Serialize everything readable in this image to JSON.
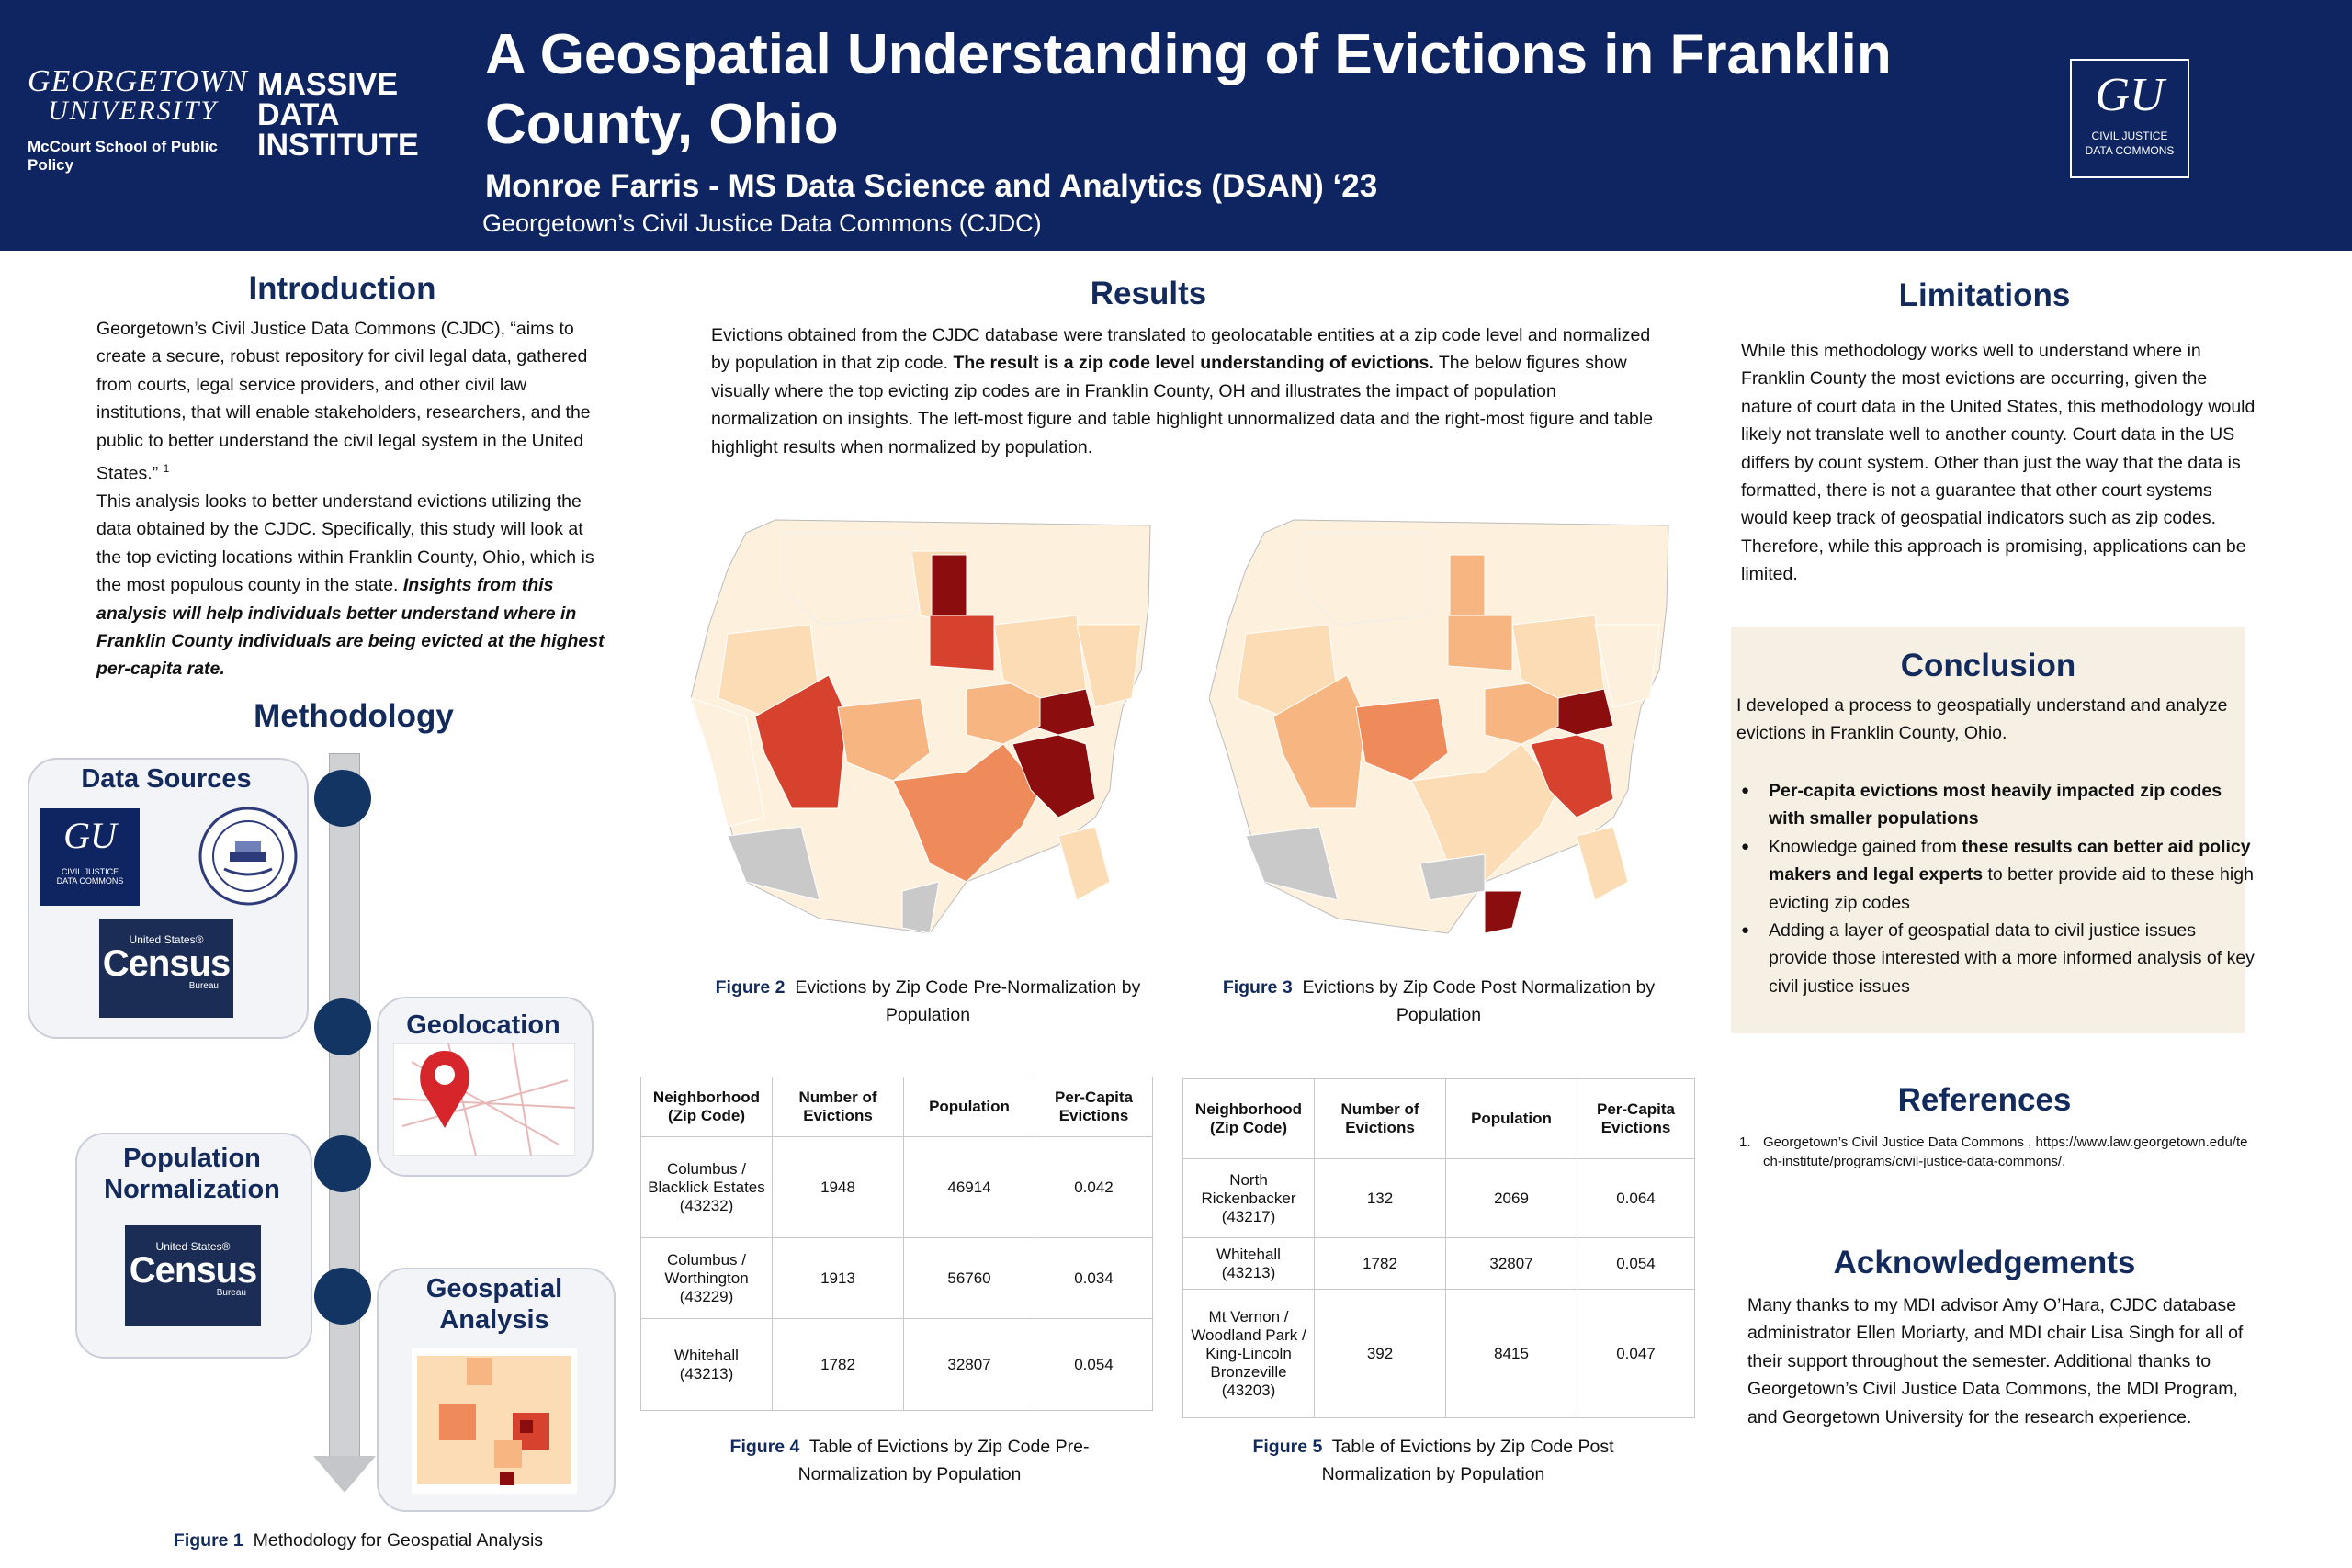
{
  "header": {
    "georgetown_line1": "GEORGETOWN",
    "georgetown_line2": "UNIVERSITY",
    "mccourt": "McCourt School of Public Policy",
    "mdi_line1": "MASSIVE",
    "mdi_line2": "DATA",
    "mdi_line3": "INSTITUTE",
    "title": "A Geospatial Understanding of Evictions in Franklin County, Ohio",
    "author": "Monroe Farris - MS Data Science and Analytics (DSAN) ‘23",
    "organization": "Georgetown’s Civil Justice Data Commons (CJDC)",
    "cjdc_logo_gu": "GU",
    "cjdc_logo_line1": "CIVIL JUSTICE",
    "cjdc_logo_line2": "DATA COMMONS"
  },
  "introduction": {
    "title": "Introduction",
    "para1": "Georgetown’s Civil Justice Data Commons (CJDC), “aims to create a secure, robust repository for civil legal data, gathered from courts, legal service providers, and other civil law institutions, that will enable stakeholders, researchers, and the public to better understand the civil legal system in the United States.”",
    "para1_footnote": "1",
    "para2": "This analysis looks to better  understand  evictions utilizing the data obtained by the CJDC. Specifically, this study will look at the top evicting locations within Franklin County, Ohio, which is the most populous county in the state.",
    "para2_emphasis": "Insights from this analysis will help individuals better understand where in Franklin County individuals are being evicted at the highest per-capita rate."
  },
  "methodology": {
    "title": "Methodology",
    "steps": [
      "Data Sources",
      "Geolocation",
      "Population Normalization",
      "Geospatial Analysis"
    ],
    "census_small": "United States®",
    "census_big": "Census",
    "census_bureau": "Bureau",
    "seal_text": "FRANKLIN COUNTY OHIO",
    "figure_label": "Figure 1",
    "figure_caption": "Methodology for Geospatial Analysis"
  },
  "results": {
    "title": "Results",
    "text_a": "Evictions obtained from the CJDC database were translated to geolocatable entities at a zip code level and normalized by population in that zip code.",
    "text_bold": "The result is a zip code level understanding of evictions.",
    "text_b": "The below figures show visually where the top evicting zip codes are in Franklin County, OH and illustrates the impact of population normalization on insights. The left-most figure and table highlight unnormalized data and the right-most figure and table highlight results when normalized by population.",
    "figure2_label": "Figure 2",
    "figure2_caption": "Evictions by Zip Code Pre-Normalization by Population",
    "figure3_label": "Figure 3",
    "figure3_caption": "Evictions by Zip Code Post Normalization by Population",
    "figure4_label": "Figure 4",
    "figure4_caption": "Table of Evictions by Zip Code Pre-Normalization by Population",
    "figure5_label": "Figure 5",
    "figure5_caption": "Table of Evictions by Zip Code Post Normalization by Population",
    "table_headers": [
      "Neighborhood (Zip Code)",
      "Number of Evictions",
      "Population",
      "Per-Capita Evictions"
    ],
    "table_pre": [
      [
        "Columbus / Blacklick Estates (43232)",
        "1948",
        "46914",
        "0.042"
      ],
      [
        "Columbus / Worthington (43229)",
        "1913",
        "56760",
        "0.034"
      ],
      [
        "Whitehall (43213)",
        "1782",
        "32807",
        "0.054"
      ]
    ],
    "table_post": [
      [
        "North Rickenbacker (43217)",
        "132",
        "2069",
        "0.064"
      ],
      [
        "Whitehall (43213)",
        "1782",
        "32807",
        "0.054"
      ],
      [
        "Mt Vernon / Woodland Park / King-Lincoln Bronzeville (43203)",
        "392",
        "8415",
        "0.047"
      ]
    ],
    "map_colors": {
      "lightest": "#fdf1de",
      "light": "#fbdcb5",
      "medium": "#f6b581",
      "medium_dark": "#ef8a5a",
      "dark": "#d7422e",
      "darkest": "#8b0d0d",
      "missing": "#c9c9c9"
    }
  },
  "limitations": {
    "title": "Limitations",
    "text": "While this methodology works well to understand where in Franklin County the most evictions are occurring, given the nature of court data in the United States, this methodology would likely not translate well to another county. Court data in the US differs by count system. Other than just the way that the data is formatted, there is not a guarantee that other court systems would keep track of geospatial indicators such as zip codes. Therefore, while this approach is promising, applications can be limited."
  },
  "conclusion": {
    "title": "Conclusion",
    "intro": "I developed a process to geospatially understand and analyze evictions in Franklin County, Ohio.",
    "bullet1_bold": "Per-capita evictions most heavily impacted zip codes with smaller populations",
    "bullet2_a": "Knowledge gained from",
    "bullet2_bold": "these results can better aid policy makers and legal experts",
    "bullet2_b": "to better provide aid to these high evicting zip codes",
    "bullet3": "Adding a layer of geospatial data to civil justice issues provide those interested with a more informed analysis of key civil justice issues"
  },
  "references": {
    "title": "References",
    "items": [
      "Georgetown’s Civil Justice Data Commons , https://www.law.georgetown.edu/tech-institute/programs/civil-justice-data-commons/."
    ]
  },
  "acknowledgements": {
    "title": "Acknowledgements",
    "text": "Many thanks to my MDI advisor Amy O’Hara, CJDC database administrator Ellen Moriarty, and MDI chair Lisa Singh for all of their support throughout the semester. Additional thanks to Georgetown’s Civil Justice Data Commons, the MDI Program, and Georgetown University for the research experience."
  }
}
